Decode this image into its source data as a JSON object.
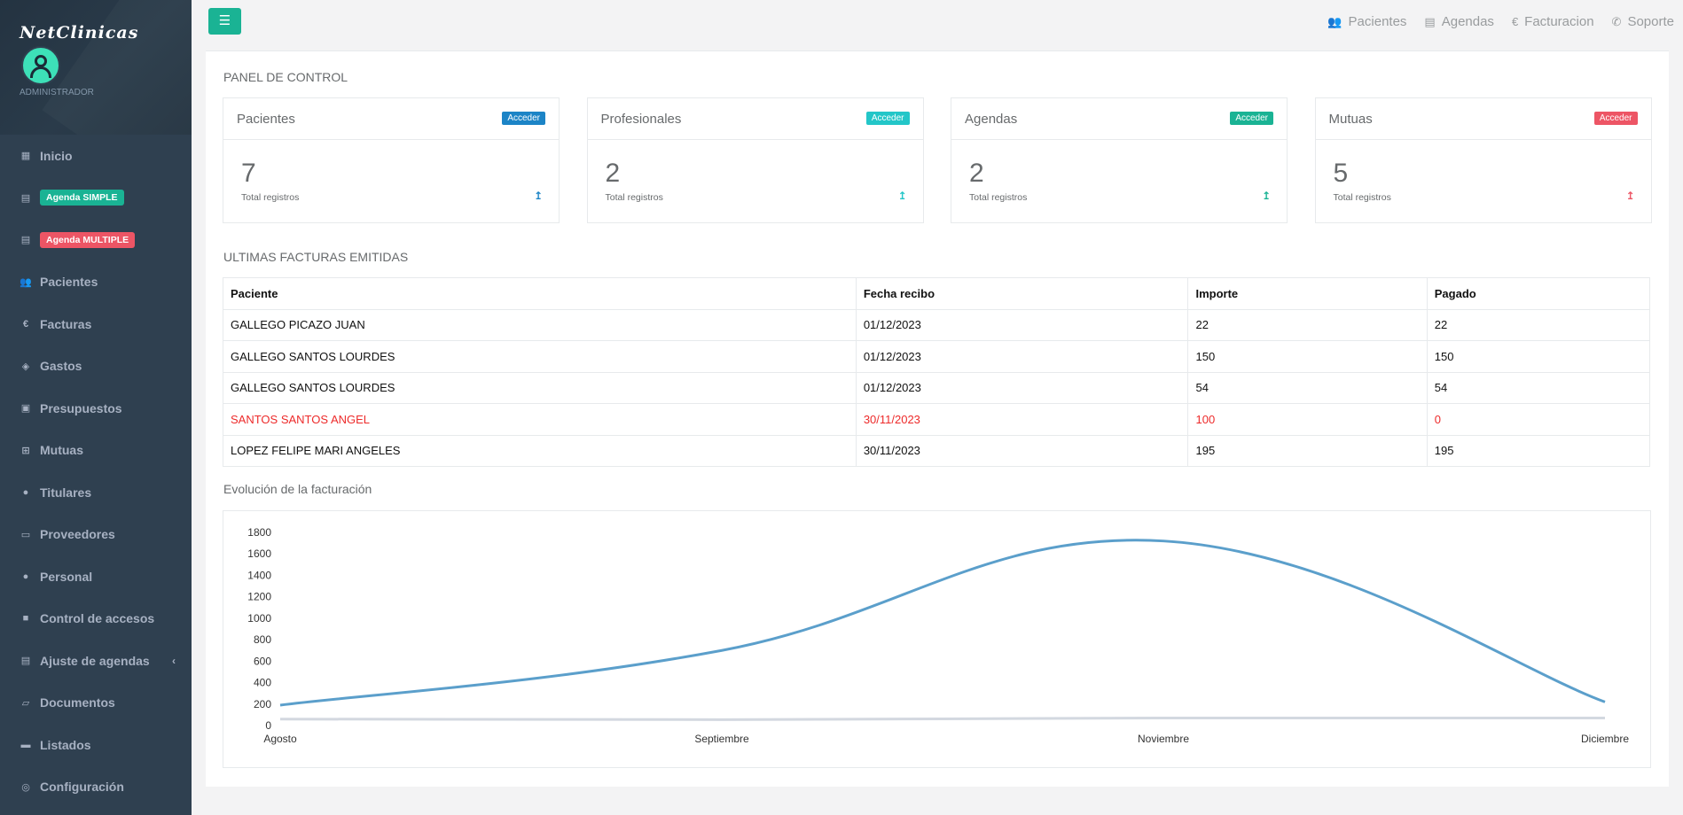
{
  "sidebar": {
    "brand": "NetClinicas",
    "role": "ADMINISTRADOR",
    "items": [
      {
        "label": "Inicio",
        "icon": "grid-icon"
      },
      {
        "label": "Agenda SIMPLE",
        "icon": "calendar-icon",
        "badge_color": "#1ab394"
      },
      {
        "label": "Agenda MULTIPLE",
        "icon": "calendar-icon",
        "badge_color": "#ed5565"
      },
      {
        "label": "Pacientes",
        "icon": "users-icon"
      },
      {
        "label": "Facturas",
        "icon": "euro-icon"
      },
      {
        "label": "Gastos",
        "icon": "tag-icon"
      },
      {
        "label": "Presupuestos",
        "icon": "money-icon"
      },
      {
        "label": "Mutuas",
        "icon": "medkit-icon"
      },
      {
        "label": "Titulares",
        "icon": "user-icon"
      },
      {
        "label": "Proveedores",
        "icon": "truck-icon"
      },
      {
        "label": "Personal",
        "icon": "user-md-icon"
      },
      {
        "label": "Control de accesos",
        "icon": "lock-icon"
      },
      {
        "label": "Ajuste de agendas",
        "icon": "calendar-icon"
      },
      {
        "label": "Documentos",
        "icon": "folder-open-icon"
      },
      {
        "label": "Listados",
        "icon": "print-icon"
      },
      {
        "label": "Configuración",
        "icon": "dashboard-icon"
      }
    ]
  },
  "topbar": {
    "menu_icon": "bars-icon",
    "links": [
      {
        "label": "Pacientes",
        "icon": "users-icon"
      },
      {
        "label": "Agendas",
        "icon": "calendar-icon"
      },
      {
        "label": "Facturacion",
        "icon": "euro-icon"
      },
      {
        "label": "Soporte",
        "icon": "phone-icon"
      }
    ]
  },
  "panel_title": "PANEL DE CONTROL",
  "cards": [
    {
      "title": "Pacientes",
      "button": "Acceder",
      "color": "#1c84c6",
      "value": "7",
      "sub": "Total registros"
    },
    {
      "title": "Profesionales",
      "button": "Acceder",
      "color": "#23c6c8",
      "value": "2",
      "sub": "Total registros"
    },
    {
      "title": "Agendas",
      "button": "Acceder",
      "color": "#1ab394",
      "value": "2",
      "sub": "Total registros"
    },
    {
      "title": "Mutuas",
      "button": "Acceder",
      "color": "#ed5565",
      "value": "5",
      "sub": "Total registros"
    }
  ],
  "invoices": {
    "title": "ULTIMAS FACTURAS EMITIDAS",
    "headers": [
      "Paciente",
      "Fecha recibo",
      "Importe",
      "Pagado"
    ],
    "rows": [
      {
        "cells": [
          "GALLEGO PICAZO JUAN",
          "01/12/2023",
          "22",
          "22"
        ],
        "unpaid": false
      },
      {
        "cells": [
          "GALLEGO SANTOS LOURDES",
          "01/12/2023",
          "150",
          "150"
        ],
        "unpaid": false
      },
      {
        "cells": [
          "GALLEGO SANTOS LOURDES",
          "01/12/2023",
          "54",
          "54"
        ],
        "unpaid": false
      },
      {
        "cells": [
          "SANTOS SANTOS ANGEL",
          "30/11/2023",
          "100",
          "0"
        ],
        "unpaid": true
      },
      {
        "cells": [
          "LOPEZ FELIPE MARI ANGELES",
          "30/11/2023",
          "195",
          "195"
        ],
        "unpaid": false
      }
    ]
  },
  "chart_title": "Evolución de la facturación",
  "chart_data": {
    "type": "line",
    "categories": [
      "Agosto",
      "Septiembre",
      "Noviembre",
      "Diciembre"
    ],
    "series": [
      {
        "values": [
          190,
          700,
          1720,
          220
        ],
        "color": "#5b9fcb"
      },
      {
        "values": [
          60,
          55,
          70,
          70
        ],
        "color": "#d3d8e0"
      }
    ],
    "ylim": [
      0,
      1800
    ],
    "yticks": [
      0,
      200,
      400,
      600,
      800,
      1000,
      1200,
      1400,
      1600,
      1800
    ]
  }
}
